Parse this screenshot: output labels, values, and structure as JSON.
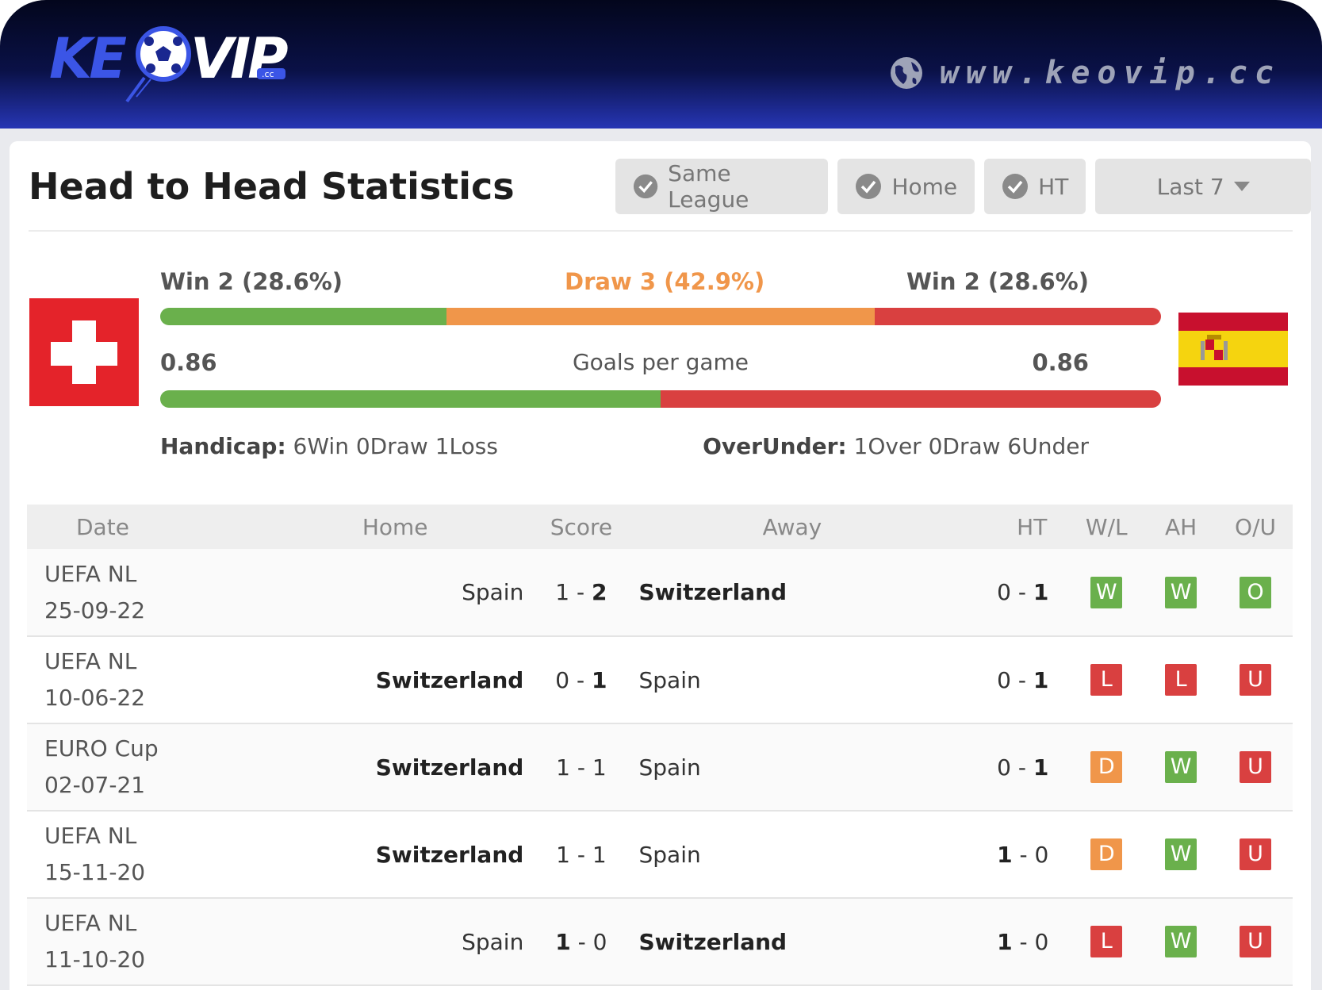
{
  "header": {
    "logo_text": "KEOVIP",
    "site_url": "www.keovip.cc"
  },
  "title": "Head to Head Statistics",
  "filters": [
    {
      "label": "Same League",
      "checked": true
    },
    {
      "label": "Home",
      "checked": true
    },
    {
      "label": "HT",
      "checked": true
    }
  ],
  "range_select": {
    "value": "Last 7"
  },
  "summary": {
    "home_win": "Win 2 (28.6%)",
    "draw": "Draw 3 (42.9%)",
    "away_win": "Win 2 (28.6%)",
    "home_win_pct": 28.6,
    "draw_pct": 42.9,
    "away_win_pct": 28.6,
    "home_goals": "0.86",
    "away_goals": "0.86",
    "goals_label": "Goals per game",
    "handicap_label": "Handicap:",
    "handicap_value": " 6Win 0Draw 1Loss",
    "overunder_label": "OverUnder:",
    "overunder_value": " 1Over 0Draw 6Under"
  },
  "colors": {
    "win": "#6ab04c",
    "draw": "#f0964a",
    "loss": "#d94040",
    "header_dark": "#050a2c",
    "header_blue": "#2635b4"
  },
  "table": {
    "headers": [
      "Date",
      "Home",
      "Score",
      "Away",
      "HT",
      "W/L",
      "AH",
      "O/U"
    ],
    "rows": [
      {
        "league": "UEFA NL",
        "date": "25-09-22",
        "home": "Spain",
        "home_bold": false,
        "score_h": "1",
        "score_a": "2",
        "away": "Switzerland",
        "away_bold": true,
        "ht_h": "0",
        "ht_a": "1",
        "wl": "W",
        "ah": "W",
        "ou": "O"
      },
      {
        "league": "UEFA NL",
        "date": "10-06-22",
        "home": "Switzerland",
        "home_bold": true,
        "score_h": "0",
        "score_a": "1",
        "away": "Spain",
        "away_bold": false,
        "ht_h": "0",
        "ht_a": "1",
        "wl": "L",
        "ah": "L",
        "ou": "U"
      },
      {
        "league": "EURO Cup",
        "date": "02-07-21",
        "home": "Switzerland",
        "home_bold": true,
        "score_h": "1",
        "score_a": "1",
        "away": "Spain",
        "away_bold": false,
        "ht_h": "0",
        "ht_a": "1",
        "wl": "D",
        "ah": "W",
        "ou": "U"
      },
      {
        "league": "UEFA NL",
        "date": "15-11-20",
        "home": "Switzerland",
        "home_bold": true,
        "score_h": "1",
        "score_a": "1",
        "away": "Spain",
        "away_bold": false,
        "ht_h": "1",
        "ht_a": "0",
        "wl": "D",
        "ah": "W",
        "ou": "U"
      },
      {
        "league": "UEFA NL",
        "date": "11-10-20",
        "home": "Spain",
        "home_bold": false,
        "score_h": "1",
        "score_a": "0",
        "away": "Switzerland",
        "away_bold": true,
        "ht_h": "1",
        "ht_a": "0",
        "wl": "L",
        "ah": "W",
        "ou": "U"
      }
    ]
  }
}
